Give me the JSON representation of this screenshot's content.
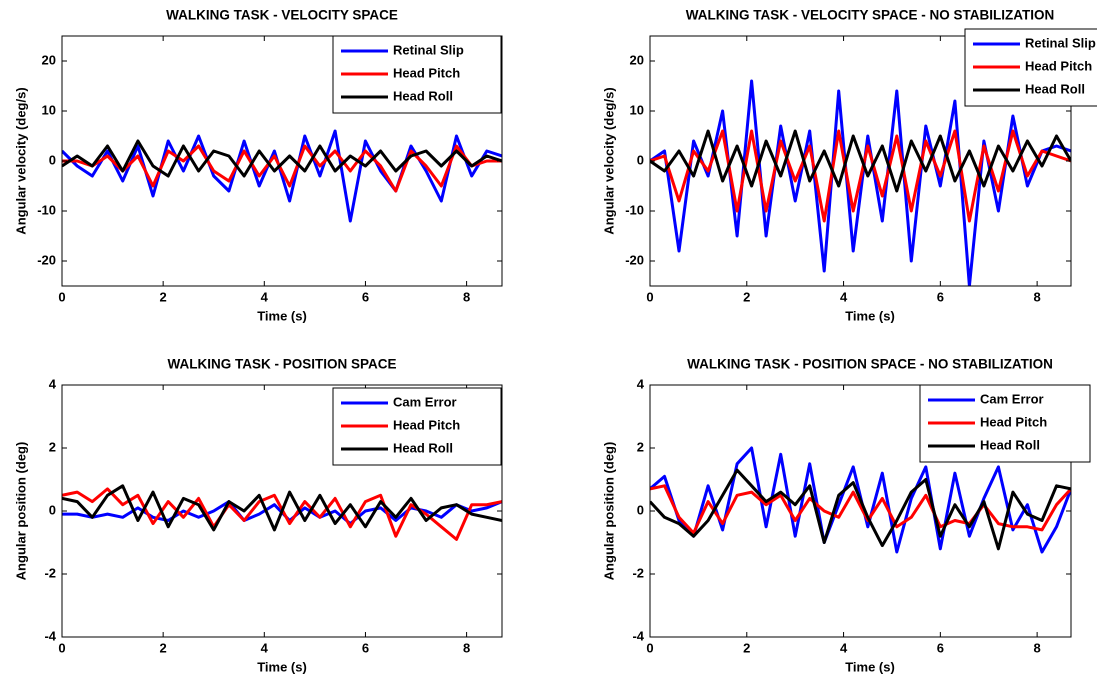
{
  "chart_data": [
    {
      "type": "line",
      "title": "WALKING TASK - VELOCITY SPACE",
      "xlabel": "Time (s)",
      "ylabel": "Angular velocity (deg/s)",
      "x": [
        0,
        0.3,
        0.6,
        0.9,
        1.2,
        1.5,
        1.8,
        2.1,
        2.4,
        2.7,
        3.0,
        3.3,
        3.6,
        3.9,
        4.2,
        4.5,
        4.8,
        5.1,
        5.4,
        5.7,
        6.0,
        6.3,
        6.6,
        6.9,
        7.2,
        7.5,
        7.8,
        8.1,
        8.4,
        8.7
      ],
      "xlim": [
        0,
        8.7
      ],
      "xticks": [
        0,
        2,
        4,
        6,
        8
      ],
      "ylim": [
        -25,
        25
      ],
      "yticks": [
        -20,
        -10,
        0,
        10,
        20
      ],
      "legend": "upper right",
      "series": [
        {
          "name": "Retinal Slip",
          "color": "#0000ff",
          "values": [
            2,
            -1,
            -3,
            2,
            -4,
            3,
            -7,
            4,
            -2,
            5,
            -3,
            -6,
            4,
            -5,
            2,
            -8,
            5,
            -3,
            6,
            -12,
            4,
            -2,
            -6,
            3,
            -2,
            -8,
            5,
            -3,
            2,
            1
          ]
        },
        {
          "name": "Head Pitch",
          "color": "#ff0000",
          "values": [
            0,
            0,
            -1,
            1,
            -2,
            1,
            -5,
            2,
            0,
            3,
            -2,
            -4,
            2,
            -3,
            1,
            -5,
            3,
            -1,
            2,
            -2,
            2,
            -1,
            -6,
            2,
            -1,
            -5,
            3,
            -1,
            0,
            0
          ]
        },
        {
          "name": "Head Roll",
          "color": "#000000",
          "values": [
            -1,
            1,
            -1,
            3,
            -2,
            4,
            -1,
            -3,
            3,
            -2,
            2,
            1,
            -3,
            2,
            -2,
            1,
            -2,
            3,
            -2,
            1,
            -1,
            2,
            -2,
            1,
            2,
            -1,
            2,
            -1,
            1,
            0
          ]
        }
      ]
    },
    {
      "type": "line",
      "title": "WALKING TASK - VELOCITY SPACE - NO STABILIZATION",
      "xlabel": "Time (s)",
      "ylabel": "Angular velocity (deg/s)",
      "x": [
        0,
        0.3,
        0.6,
        0.9,
        1.2,
        1.5,
        1.8,
        2.1,
        2.4,
        2.7,
        3.0,
        3.3,
        3.6,
        3.9,
        4.2,
        4.5,
        4.8,
        5.1,
        5.4,
        5.7,
        6.0,
        6.3,
        6.6,
        6.9,
        7.2,
        7.5,
        7.8,
        8.1,
        8.4,
        8.7
      ],
      "xlim": [
        0,
        8.7
      ],
      "xticks": [
        0,
        2,
        4,
        6,
        8
      ],
      "ylim": [
        -25,
        25
      ],
      "yticks": [
        -20,
        -10,
        0,
        10,
        20
      ],
      "legend": "upper right",
      "series": [
        {
          "name": "Retinal Slip",
          "color": "#0000ff",
          "values": [
            0,
            2,
            -18,
            4,
            -3,
            10,
            -15,
            16,
            -15,
            7,
            -8,
            6,
            -22,
            14,
            -18,
            5,
            -12,
            14,
            -20,
            7,
            -5,
            12,
            -25,
            4,
            -10,
            9,
            -5,
            2,
            3,
            2
          ]
        },
        {
          "name": "Head Pitch",
          "color": "#ff0000",
          "values": [
            0,
            1,
            -8,
            2,
            -2,
            6,
            -10,
            6,
            -10,
            4,
            -4,
            3,
            -12,
            6,
            -10,
            3,
            -7,
            5,
            -10,
            4,
            -3,
            6,
            -12,
            3,
            -6,
            6,
            -3,
            2,
            1,
            0
          ]
        },
        {
          "name": "Head Roll",
          "color": "#000000",
          "values": [
            0,
            -2,
            2,
            -3,
            6,
            -4,
            3,
            -5,
            4,
            -3,
            6,
            -4,
            2,
            -5,
            5,
            -3,
            3,
            -6,
            4,
            -2,
            5,
            -4,
            2,
            -5,
            3,
            -2,
            4,
            -1,
            5,
            0
          ]
        }
      ]
    },
    {
      "type": "line",
      "title": "WALKING TASK - POSITION SPACE",
      "xlabel": "Time (s)",
      "ylabel": "Angular position (deg)",
      "x": [
        0,
        0.3,
        0.6,
        0.9,
        1.2,
        1.5,
        1.8,
        2.1,
        2.4,
        2.7,
        3.0,
        3.3,
        3.6,
        3.9,
        4.2,
        4.5,
        4.8,
        5.1,
        5.4,
        5.7,
        6.0,
        6.3,
        6.6,
        6.9,
        7.2,
        7.5,
        7.8,
        8.1,
        8.4,
        8.7
      ],
      "xlim": [
        0,
        8.7
      ],
      "xticks": [
        0,
        2,
        4,
        6,
        8
      ],
      "ylim": [
        -4,
        4
      ],
      "yticks": [
        -4,
        -2,
        0,
        2,
        4
      ],
      "legend": "upper right",
      "series": [
        {
          "name": "Cam Error",
          "color": "#0000ff",
          "values": [
            -0.1,
            -0.1,
            -0.2,
            -0.1,
            -0.2,
            0.1,
            -0.2,
            -0.3,
            0,
            -0.2,
            0,
            0.3,
            -0.3,
            -0.1,
            0.2,
            -0.3,
            0.1,
            -0.2,
            0,
            -0.4,
            0,
            0.1,
            -0.3,
            0.1,
            0,
            -0.2,
            0.2,
            0,
            0.1,
            0.3
          ]
        },
        {
          "name": "Head Pitch",
          "color": "#ff0000",
          "values": [
            0.5,
            0.6,
            0.3,
            0.7,
            0.2,
            0.5,
            -0.4,
            0.3,
            -0.2,
            0.4,
            -0.5,
            0.2,
            -0.3,
            0.3,
            0.5,
            -0.4,
            0.3,
            -0.2,
            0.4,
            -0.5,
            0.3,
            0.5,
            -0.8,
            0.2,
            -0.1,
            -0.5,
            -0.9,
            0.2,
            0.2,
            0.3
          ]
        },
        {
          "name": "Head Roll",
          "color": "#000000",
          "values": [
            0.4,
            0.3,
            -0.2,
            0.5,
            0.8,
            -0.3,
            0.6,
            -0.5,
            0.4,
            0.2,
            -0.6,
            0.3,
            0,
            0.5,
            -0.6,
            0.6,
            -0.3,
            0.5,
            -0.4,
            0.2,
            -0.5,
            0.3,
            -0.2,
            0.4,
            -0.3,
            0.1,
            0.2,
            -0.1,
            -0.2,
            -0.3
          ]
        }
      ]
    },
    {
      "type": "line",
      "title": "WALKING TASK - POSITION SPACE - NO STABILIZATION",
      "xlabel": "Time (s)",
      "ylabel": "Angular position (deg)",
      "x": [
        0,
        0.3,
        0.6,
        0.9,
        1.2,
        1.5,
        1.8,
        2.1,
        2.4,
        2.7,
        3.0,
        3.3,
        3.6,
        3.9,
        4.2,
        4.5,
        4.8,
        5.1,
        5.4,
        5.7,
        6.0,
        6.3,
        6.6,
        6.9,
        7.2,
        7.5,
        7.8,
        8.1,
        8.4,
        8.7
      ],
      "xlim": [
        0,
        8.7
      ],
      "xticks": [
        0,
        2,
        4,
        6,
        8
      ],
      "ylim": [
        -4,
        4
      ],
      "yticks": [
        -4,
        -2,
        0,
        2,
        4
      ],
      "legend": "upper right",
      "series": [
        {
          "name": "Cam Error",
          "color": "#0000ff",
          "values": [
            0.7,
            1.1,
            -0.3,
            -0.8,
            0.8,
            -0.6,
            1.5,
            2.0,
            -0.5,
            1.8,
            -0.8,
            1.5,
            -1.0,
            0.2,
            1.4,
            -0.5,
            1.2,
            -1.3,
            0.4,
            1.4,
            -1.2,
            1.2,
            -0.8,
            0.4,
            1.4,
            -0.6,
            0.2,
            -1.3,
            -0.5,
            0.7
          ]
        },
        {
          "name": "Head Pitch",
          "color": "#ff0000",
          "values": [
            0.7,
            0.8,
            -0.2,
            -0.7,
            0.3,
            -0.4,
            0.5,
            0.6,
            0.2,
            0.5,
            -0.3,
            0.4,
            0,
            -0.2,
            0.6,
            -0.3,
            0.4,
            -0.5,
            -0.2,
            0.5,
            -0.5,
            -0.3,
            -0.4,
            0.2,
            -0.4,
            -0.5,
            -0.5,
            -0.6,
            0.2,
            0.7
          ]
        },
        {
          "name": "Head Roll",
          "color": "#000000",
          "values": [
            0.3,
            -0.2,
            -0.4,
            -0.8,
            -0.3,
            0.5,
            1.3,
            0.8,
            0.3,
            0.6,
            0.2,
            0.8,
            -1.0,
            0.5,
            0.9,
            -0.2,
            -1.1,
            -0.3,
            0.6,
            1.0,
            -0.8,
            0.2,
            -0.5,
            0.3,
            -1.2,
            0.6,
            -0.1,
            -0.3,
            0.8,
            0.7
          ]
        }
      ]
    }
  ]
}
